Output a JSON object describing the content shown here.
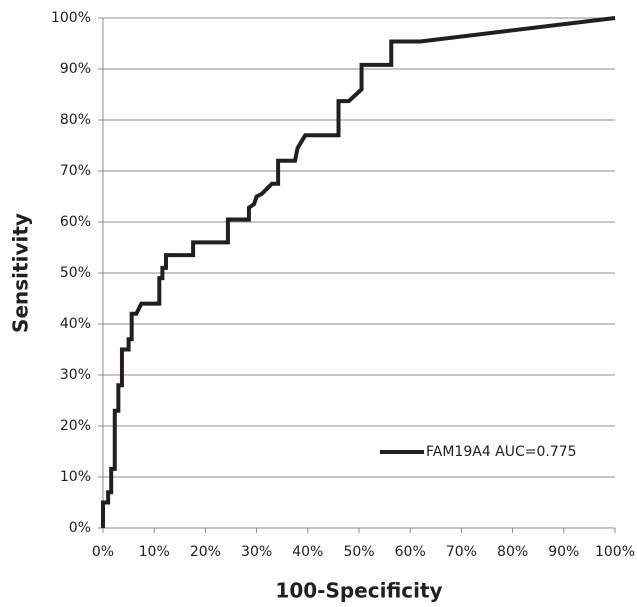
{
  "chart_data": {
    "type": "line",
    "xlabel": "100-Specificity",
    "ylabel": "Sensitivity",
    "x": [
      0,
      0,
      1,
      1,
      1.6,
      1.6,
      2.3,
      2.3,
      3,
      3,
      3.7,
      3.7,
      5,
      5,
      5.6,
      5.6,
      6.5,
      7.5,
      11,
      11,
      11.6,
      11.6,
      12.3,
      12.3,
      17.6,
      17.6,
      24.4,
      24.4,
      28.5,
      28.5,
      29.5,
      30,
      31,
      33,
      34.2,
      34.2,
      37.5,
      38,
      39.5,
      46,
      46,
      48,
      50.5,
      50.5,
      56.3,
      56.3,
      62,
      100
    ],
    "series": [
      {
        "name": "FAM19A4 AUC=0.775",
        "color": "#231f20",
        "values": [
          0,
          5,
          5,
          7,
          7,
          11.6,
          11.6,
          23,
          23,
          28,
          28,
          35,
          35,
          37,
          37,
          42,
          42,
          44,
          44,
          49,
          49,
          51,
          51,
          53.5,
          53.5,
          56,
          56,
          60.5,
          60.5,
          62.8,
          63.5,
          65,
          65.5,
          67.5,
          67.5,
          72,
          72,
          74.5,
          77,
          77,
          83.7,
          83.7,
          86,
          90.8,
          90.8,
          95.4,
          95.4,
          100
        ]
      }
    ],
    "xlim": [
      0,
      100
    ],
    "ylim": [
      0,
      100
    ],
    "xticks": [
      {
        "value": 0,
        "label": "0%"
      },
      {
        "value": 10,
        "label": "10%"
      },
      {
        "value": 20,
        "label": "20%"
      },
      {
        "value": 30,
        "label": "30%"
      },
      {
        "value": 40,
        "label": "40%"
      },
      {
        "value": 50,
        "label": "50%"
      },
      {
        "value": 60,
        "label": "60%"
      },
      {
        "value": 70,
        "label": "70%"
      },
      {
        "value": 80,
        "label": "80%"
      },
      {
        "value": 90,
        "label": "90%"
      },
      {
        "value": 100,
        "label": "100%"
      }
    ],
    "yticks": [
      {
        "value": 0,
        "label": "0%"
      },
      {
        "value": 10,
        "label": "10%"
      },
      {
        "value": 20,
        "label": "20%"
      },
      {
        "value": 30,
        "label": "30%"
      },
      {
        "value": 40,
        "label": "40%"
      },
      {
        "value": 50,
        "label": "50%"
      },
      {
        "value": 60,
        "label": "60%"
      },
      {
        "value": 70,
        "label": "70%"
      },
      {
        "value": 80,
        "label": "80%"
      },
      {
        "value": 90,
        "label": "90%"
      },
      {
        "value": 100,
        "label": "100%"
      }
    ],
    "grid": true,
    "legend": "lower-right"
  }
}
